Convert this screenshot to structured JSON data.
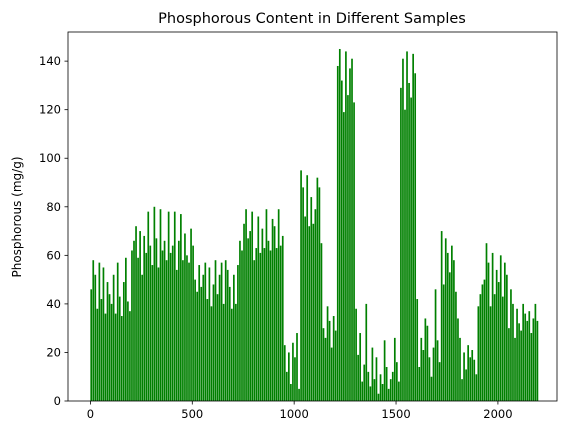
{
  "chart_data": {
    "type": "bar",
    "title": "Phosphorous Content in Different Samples",
    "xlabel": "",
    "ylabel": "Phosphorous (mg/g)",
    "xlim": [
      -110,
      2290
    ],
    "ylim": [
      0,
      152
    ],
    "x_ticks": [
      0,
      500,
      1000,
      1500,
      2000
    ],
    "y_ticks": [
      0,
      20,
      40,
      60,
      80,
      100,
      120,
      140
    ],
    "bar_color": "#008000",
    "grid": false,
    "legend": "none",
    "sample_count": 2200,
    "series": [
      {
        "x_start": 0,
        "x_step": 10,
        "values": [
          46,
          58,
          52,
          38,
          57,
          42,
          55,
          36,
          49,
          44,
          40,
          52,
          36,
          57,
          43,
          35,
          49,
          59,
          41,
          37,
          62,
          66,
          72,
          59,
          70,
          52,
          68,
          61,
          78,
          64,
          56,
          80,
          67,
          55,
          79,
          62,
          66,
          58,
          78,
          61,
          64,
          78,
          54,
          66,
          77,
          58,
          69,
          60,
          57,
          71,
          64,
          50,
          45,
          56,
          47,
          52,
          57,
          42,
          55,
          39,
          48,
          58,
          44,
          52,
          57,
          40,
          58,
          54,
          47,
          38,
          52,
          40,
          56,
          66,
          62,
          73,
          79,
          67,
          70,
          78,
          58,
          63,
          76,
          61,
          71,
          63,
          79,
          66,
          62,
          75,
          72,
          63,
          79,
          64,
          68,
          23,
          12,
          20,
          7,
          24,
          18,
          28,
          5,
          95,
          88,
          76,
          93,
          72,
          84,
          73,
          79,
          92,
          88,
          65,
          30,
          26,
          39,
          33,
          22,
          35,
          29,
          138,
          145,
          132,
          119,
          144,
          126,
          137,
          141,
          123,
          38,
          19,
          28,
          8,
          15,
          40,
          12,
          6,
          22,
          9,
          18,
          3,
          11,
          7,
          25,
          14,
          5,
          9,
          12,
          26,
          16,
          8,
          129,
          141,
          120,
          144,
          131,
          125,
          143,
          135,
          42,
          14,
          26,
          21,
          34,
          31,
          18,
          10,
          22,
          46,
          25,
          16,
          70,
          48,
          67,
          61,
          53,
          64,
          58,
          45,
          34,
          26,
          9,
          20,
          13,
          23,
          18,
          21,
          17,
          11,
          39,
          44,
          48,
          50,
          65,
          57,
          39,
          61,
          44,
          54,
          49,
          60,
          43,
          57,
          52,
          30,
          46,
          40,
          26,
          38,
          32,
          29,
          40,
          36,
          33,
          37,
          28,
          34,
          40,
          33
        ]
      }
    ]
  }
}
